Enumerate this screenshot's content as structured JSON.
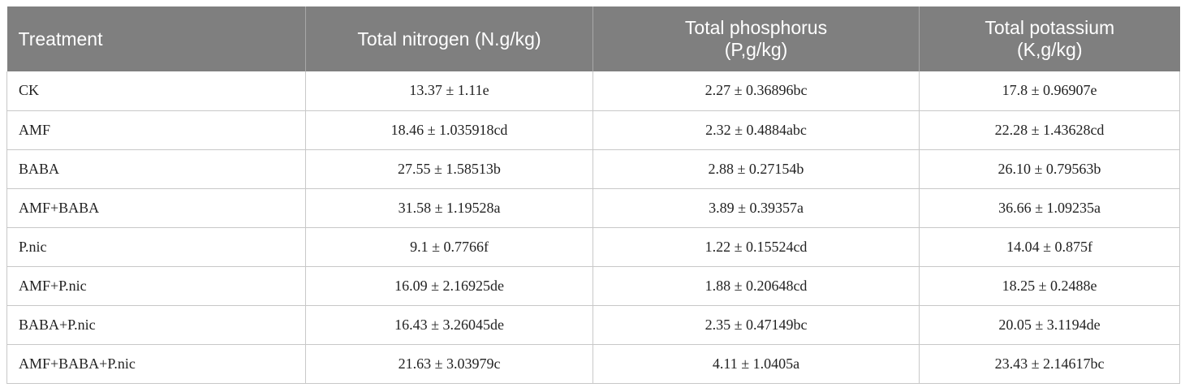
{
  "table": {
    "headers": [
      {
        "lines": [
          "Treatment"
        ]
      },
      {
        "lines": [
          "Total nitrogen (N.g/kg)"
        ]
      },
      {
        "lines": [
          "Total phosphorus",
          "(P,g/kg)"
        ]
      },
      {
        "lines": [
          "Total potassium",
          "(K,g/kg)"
        ]
      }
    ],
    "rows": [
      [
        "CK",
        "13.37 ± 1.11e",
        "2.27 ± 0.36896bc",
        "17.8 ± 0.96907e"
      ],
      [
        "AMF",
        "18.46 ± 1.035918cd",
        "2.32 ± 0.4884abc",
        "22.28 ± 1.43628cd"
      ],
      [
        "BABA",
        "27.55 ± 1.58513b",
        "2.88 ± 0.27154b",
        "26.10 ± 0.79563b"
      ],
      [
        "AMF+BABA",
        "31.58 ± 1.19528a",
        "3.89 ± 0.39357a",
        "36.66 ± 1.09235a"
      ],
      [
        "P.nic",
        "9.1 ± 0.7766f",
        "1.22 ± 0.15524cd",
        "14.04 ± 0.875f"
      ],
      [
        "AMF+P.nic",
        "16.09 ± 2.16925de",
        "1.88 ± 0.20648cd",
        "18.25 ± 0.2488e"
      ],
      [
        "BABA+P.nic",
        "16.43 ± 3.26045de",
        "2.35 ± 0.47149bc",
        "20.05 ± 3.1194de"
      ],
      [
        "AMF+BABA+P.nic",
        "21.63 ± 3.03979c",
        "4.11 ± 1.0405a",
        "23.43 ± 2.14617bc"
      ]
    ]
  }
}
